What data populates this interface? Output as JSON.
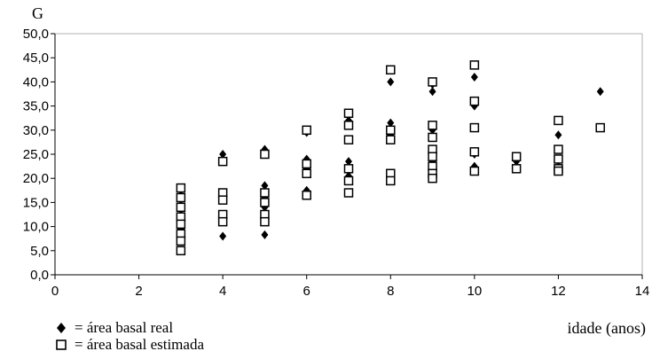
{
  "chart_data": {
    "type": "scatter",
    "ylabel": "G",
    "xlabel": "idade (anos)",
    "xlim": [
      0,
      14
    ],
    "ylim": [
      0,
      50
    ],
    "x_ticks": [
      "0",
      "2",
      "4",
      "6",
      "8",
      "10",
      "12",
      "14"
    ],
    "y_ticks": [
      "0,0",
      "5,0",
      "10,0",
      "15,0",
      "20,0",
      "25,0",
      "30,0",
      "35,0",
      "40,0",
      "45,0",
      "50,0"
    ],
    "grid": false,
    "legend_position": "bottom-left",
    "series": [
      {
        "name": "= área basal real",
        "marker": "filled-diamond",
        "color": "#000000",
        "points": [
          [
            3,
            16.5
          ],
          [
            3,
            14.5
          ],
          [
            3,
            12.5
          ],
          [
            3,
            11.0
          ],
          [
            3,
            9.5
          ],
          [
            4,
            25.0
          ],
          [
            4,
            16.0
          ],
          [
            4,
            11.0
          ],
          [
            4,
            8.0
          ],
          [
            5,
            26.0
          ],
          [
            5,
            18.5
          ],
          [
            5,
            16.0
          ],
          [
            5,
            14.0
          ],
          [
            5,
            8.3
          ],
          [
            6,
            29.5
          ],
          [
            6,
            24.0
          ],
          [
            6,
            22.0
          ],
          [
            6,
            17.5
          ],
          [
            7,
            32.0
          ],
          [
            7,
            28.0
          ],
          [
            7,
            23.5
          ],
          [
            7,
            20.5
          ],
          [
            8,
            40.0
          ],
          [
            8,
            31.5
          ],
          [
            8,
            29.0
          ],
          [
            8,
            20.5
          ],
          [
            9,
            39.5
          ],
          [
            9,
            38.0
          ],
          [
            9,
            30.0
          ],
          [
            9,
            25.0
          ],
          [
            9,
            23.5
          ],
          [
            9,
            21.0
          ],
          [
            10,
            41.0
          ],
          [
            10,
            35.0
          ],
          [
            10,
            25.0
          ],
          [
            10,
            22.5
          ],
          [
            11,
            23.5
          ],
          [
            12,
            29.0
          ],
          [
            12,
            24.0
          ],
          [
            12,
            22.5
          ],
          [
            13,
            38.0
          ]
        ]
      },
      {
        "name": "= área basal estimada",
        "marker": "open-square",
        "color": "#000000",
        "points": [
          [
            3,
            18.0
          ],
          [
            3,
            16.0
          ],
          [
            3,
            14.0
          ],
          [
            3,
            12.0
          ],
          [
            3,
            10.5
          ],
          [
            3,
            8.5
          ],
          [
            3,
            7.0
          ],
          [
            3,
            5.0
          ],
          [
            4,
            23.5
          ],
          [
            4,
            17.0
          ],
          [
            4,
            15.5
          ],
          [
            4,
            12.5
          ],
          [
            4,
            11.0
          ],
          [
            5,
            25.0
          ],
          [
            5,
            17.0
          ],
          [
            5,
            15.0
          ],
          [
            5,
            12.5
          ],
          [
            5,
            11.0
          ],
          [
            6,
            30.0
          ],
          [
            6,
            23.0
          ],
          [
            6,
            21.0
          ],
          [
            6,
            16.5
          ],
          [
            7,
            33.5
          ],
          [
            7,
            31.0
          ],
          [
            7,
            28.0
          ],
          [
            7,
            22.0
          ],
          [
            7,
            19.5
          ],
          [
            7,
            17.0
          ],
          [
            8,
            42.5
          ],
          [
            8,
            30.0
          ],
          [
            8,
            28.0
          ],
          [
            8,
            21.0
          ],
          [
            8,
            19.5
          ],
          [
            9,
            40.0
          ],
          [
            9,
            31.0
          ],
          [
            9,
            28.5
          ],
          [
            9,
            26.0
          ],
          [
            9,
            24.5
          ],
          [
            9,
            22.5
          ],
          [
            9,
            21.0
          ],
          [
            9,
            20.0
          ],
          [
            10,
            43.5
          ],
          [
            10,
            36.0
          ],
          [
            10,
            30.5
          ],
          [
            10,
            25.5
          ],
          [
            10,
            21.5
          ],
          [
            11,
            24.5
          ],
          [
            11,
            22.0
          ],
          [
            12,
            32.0
          ],
          [
            12,
            26.0
          ],
          [
            12,
            24.0
          ],
          [
            12,
            22.0
          ],
          [
            12,
            21.5
          ],
          [
            13,
            30.5
          ]
        ]
      }
    ]
  }
}
